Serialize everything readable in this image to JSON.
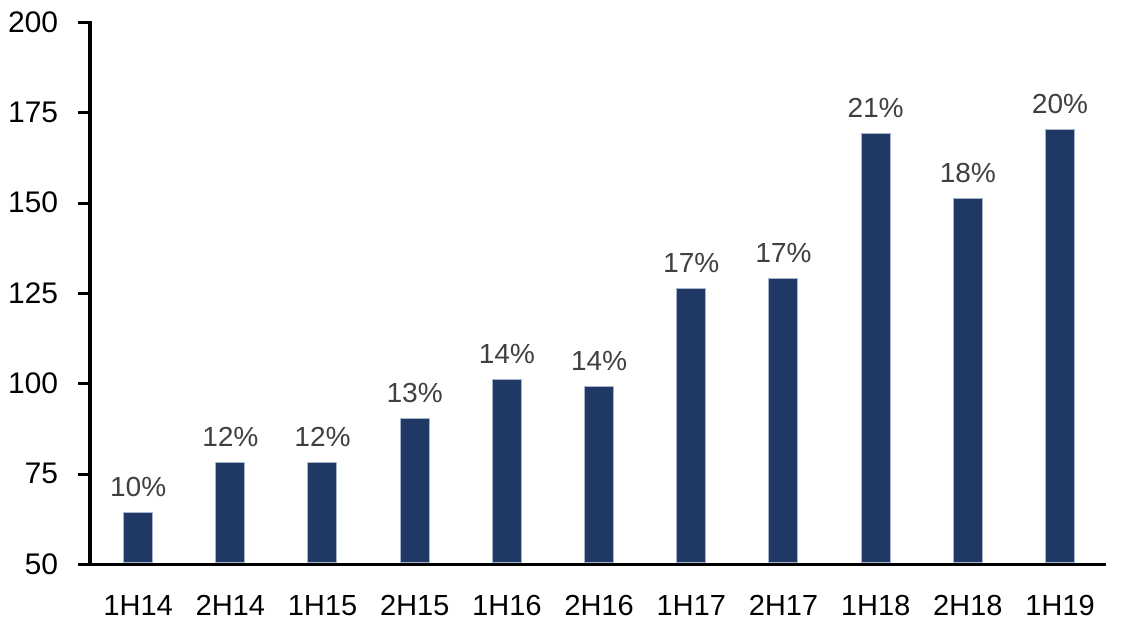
{
  "chart_data": {
    "type": "bar",
    "title": "",
    "xlabel": "",
    "ylabel": "",
    "categories": [
      "1H14",
      "2H14",
      "1H15",
      "2H15",
      "1H16",
      "2H16",
      "1H17",
      "2H17",
      "1H18",
      "2H18",
      "1H19"
    ],
    "values": [
      64,
      78,
      78,
      90,
      101,
      99,
      126,
      129,
      169,
      151,
      170
    ],
    "bar_labels": [
      "10%",
      "12%",
      "12%",
      "13%",
      "14%",
      "14%",
      "17%",
      "17%",
      "21%",
      "18%",
      "20%"
    ],
    "ylim": [
      50,
      200
    ],
    "yticks": [
      50,
      75,
      100,
      125,
      150,
      175,
      200
    ],
    "grid": false,
    "legend_position": "none",
    "colors": {
      "bar_fill": "#1F3864",
      "bar_border": "#A7B6CE",
      "value_label": "#404040",
      "axis_text": "#000000",
      "axis_line": "#000000",
      "background": "#FFFFFF"
    }
  }
}
